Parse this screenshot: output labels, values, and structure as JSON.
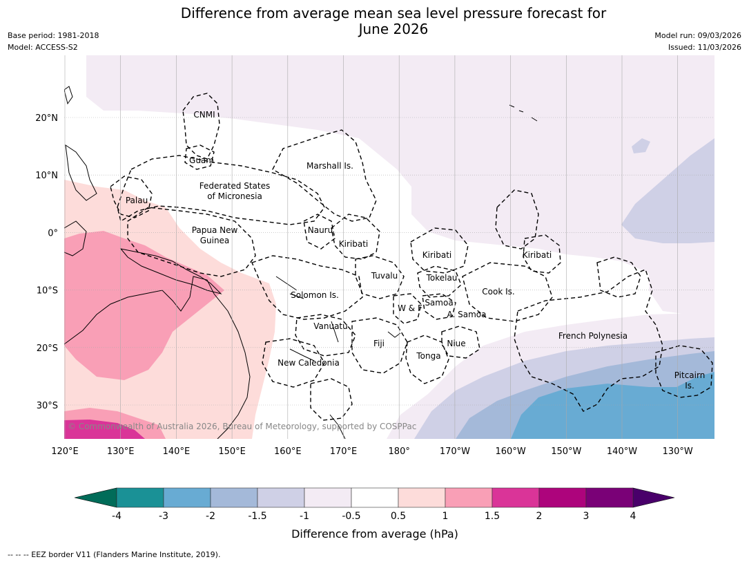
{
  "title_line1": "Difference from average mean sea level pressure forecast for",
  "title_line2": "June 2026",
  "base_period": "Base period: 1981-2018",
  "model": "Model: ACCESS-S2",
  "model_run": "Model run: 09/03/2026",
  "issued": "Issued: 11/03/2026",
  "copyright": "© Commonwealth of Australia 2026, Bureau of Meteorology, supported by COSPPac",
  "lon_labels": [
    "120°E",
    "130°E",
    "140°E",
    "150°E",
    "160°E",
    "170°E",
    "180°",
    "170°W",
    "160°W",
    "150°W",
    "140°W",
    "130°W"
  ],
  "lat_labels": [
    "20°N",
    "10°N",
    "0°",
    "10°S",
    "20°S",
    "30°S"
  ],
  "regions": [
    "CNMI",
    "Guam",
    "Marshall Is.",
    "Palau",
    "Federated States",
    "of Micronesia",
    "Papua New",
    "Guinea",
    "Nauru",
    "Kiribati",
    "Kiribati",
    "Kiribati",
    "Tuvalu",
    "Tokelau",
    "Solomon Is.",
    "Cook Is.",
    "W & F",
    "Samoa",
    "A. Samoa",
    "Vanuatu",
    "Fiji",
    "Niue",
    "Tonga",
    "New Caledonia",
    "French Polynesia",
    "Pitcairn",
    "Is."
  ],
  "colorbar": {
    "tick_labels": [
      "-4",
      "-3",
      "-2",
      "-1.5",
      "-1",
      "-0.5",
      "0.5",
      "1",
      "1.5",
      "2",
      "3",
      "4"
    ],
    "colors": [
      "#1a9196",
      "#68abd3",
      "#a4b9d9",
      "#cfd0e6",
      "#f3ebf4",
      "#ffffff",
      "#fddcda",
      "#f99fb6",
      "#da3498",
      "#ad047c",
      "#7a0177"
    ],
    "under_color": "#016c59",
    "over_color": "#49006a",
    "title": "Difference from average (hPa)"
  },
  "footer": "-- -- -- EEZ border V11 (Flanders Marine Institute, 2019)."
}
